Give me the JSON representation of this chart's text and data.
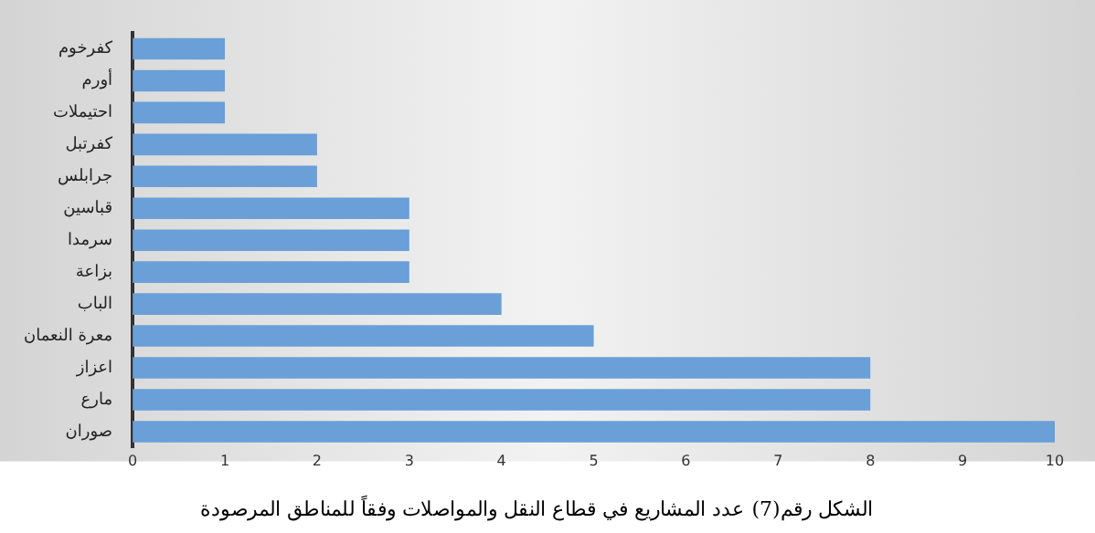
{
  "chart_data": {
    "type": "bar",
    "orientation": "horizontal",
    "title": "الشكل رقم(7) عدد المشاريع في قطاع النقل والمواصلات وفقاً للمناطق المرصودة",
    "categories": [
      "كفرخوم",
      "أورم",
      "احتيملات",
      "كفرتبل",
      "جرابلس",
      "قباسين",
      "سرمدا",
      "بزاعة",
      "الباب",
      "معرة النعمان",
      "اعزاز",
      "مارع",
      "صوران"
    ],
    "values": [
      1,
      1,
      1,
      2,
      2,
      3,
      3,
      3,
      4,
      5,
      8,
      8,
      10
    ],
    "color": "#6a9fd8",
    "xlim": [
      0,
      10
    ],
    "xticks": [
      0,
      1,
      2,
      3,
      4,
      5,
      6,
      7,
      8,
      9,
      10
    ],
    "grid": false,
    "legend": false
  }
}
